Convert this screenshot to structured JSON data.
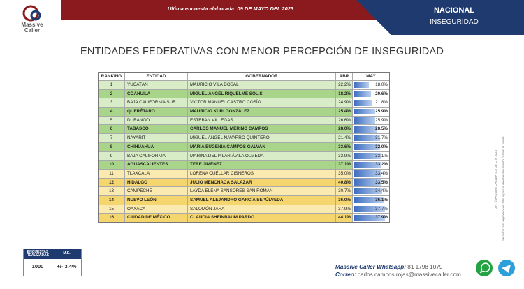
{
  "header": {
    "logo_text": "Massive Caller",
    "date_text": "Última encuesta elaborada: 09 DE MAYO DEL 2023",
    "scope": "NACIONAL",
    "topic": "INSEGURIDAD"
  },
  "title": "ENTIDADES FEDERATIVAS CON MENOR PERCEPCIÓN DE INSEGURIDAD",
  "table": {
    "columns": [
      "RANKING",
      "ENTIDAD",
      "GOBERNADOR",
      "ABR",
      "MAY"
    ],
    "bar_color": "#3f6fc0",
    "rows": [
      {
        "ranking": "1",
        "entidad": "YUCATÁN",
        "gobernador": "MAURICIO VILA DOSAL",
        "abr": "22.2%",
        "may": {
          "value": 18.0,
          "label": "18.0%"
        },
        "color": "#d8ecc8",
        "bold": false
      },
      {
        "ranking": "2",
        "entidad": "COAHUILA",
        "gobernador": "MIGUEL ÁNGEL RIQUELME SOLÍS",
        "abr": "18.2%",
        "may": {
          "value": 20.6,
          "label": "20.6%"
        },
        "color": "#a9d58a",
        "bold": true
      },
      {
        "ranking": "3",
        "entidad": "BAJA CALIFORNIA SUR",
        "gobernador": "VÍCTOR MANUEL CASTRO COSÍO",
        "abr": "24.9%",
        "may": {
          "value": 21.8,
          "label": "21.8%"
        },
        "color": "#d8ecc8",
        "bold": false
      },
      {
        "ranking": "4",
        "entidad": "QUERÉTARO",
        "gobernador": "MAURICIO KURI GONZÁLEZ",
        "abr": "25.4%",
        "may": {
          "value": 25.9,
          "label": "25.9%"
        },
        "color": "#a9d58a",
        "bold": true
      },
      {
        "ranking": "5",
        "entidad": "DURANGO",
        "gobernador": "ESTEBAN VILLEGAS",
        "abr": "26.6%",
        "may": {
          "value": 25.9,
          "label": "25.9%"
        },
        "color": "#d8ecc8",
        "bold": false
      },
      {
        "ranking": "6",
        "entidad": "TABASCO",
        "gobernador": "CARLOS MANUEL MERINO CAMPOS",
        "abr": "28.0%",
        "may": {
          "value": 28.5,
          "label": "28.5%"
        },
        "color": "#a9d58a",
        "bold": true
      },
      {
        "ranking": "7",
        "entidad": "NAYARIT",
        "gobernador": "MIGUEL ÁNGEL NAVARRO QUINTERO",
        "abr": "21.4%",
        "may": {
          "value": 31.7,
          "label": "31.7%"
        },
        "color": "#d8ecc8",
        "bold": false
      },
      {
        "ranking": "8",
        "entidad": "CHIHUAHUA",
        "gobernador": "MARÍA EUGENIA CAMPOS GALVÁN",
        "abr": "33.6%",
        "may": {
          "value": 32.0,
          "label": "32.0%"
        },
        "color": "#a9d58a",
        "bold": true
      },
      {
        "ranking": "9",
        "entidad": "BAJA CALIFORNIA",
        "gobernador": "MARINA DEL PILAR ÁVILA OLMEDA",
        "abr": "33.9%",
        "may": {
          "value": 33.1,
          "label": "33.1%"
        },
        "color": "#d8ecc8",
        "bold": false
      },
      {
        "ranking": "10",
        "entidad": "AGUASCALIENTES",
        "gobernador": "TERE JIMÉNEZ",
        "abr": "37.1%",
        "may": {
          "value": 33.2,
          "label": "33.2%"
        },
        "color": "#a9d58a",
        "bold": true
      },
      {
        "ranking": "11",
        "entidad": "TLAXCALA",
        "gobernador": "LORENA CUÉLLAR CISNEROS",
        "abr": "35.0%",
        "may": {
          "value": 33.4,
          "label": "33.4%"
        },
        "color": "#fbeab0",
        "bold": false
      },
      {
        "ranking": "12",
        "entidad": "HIDALGO",
        "gobernador": "JULIO MENCHACA SALAZAR",
        "abr": "40.8%",
        "may": {
          "value": 33.5,
          "label": "33.5%"
        },
        "color": "#f5d66e",
        "bold": true
      },
      {
        "ranking": "13",
        "entidad": "CAMPECHE",
        "gobernador": "LAYDA ELENA SANSORES SAN ROMÁN",
        "abr": "30.7%",
        "may": {
          "value": 34.4,
          "label": "34.4%"
        },
        "color": "#fbeab0",
        "bold": false
      },
      {
        "ranking": "14",
        "entidad": "NUEVO LEÓN",
        "gobernador": "SAMUEL ALEJANDRO GARCÍA SEPÚLVEDA",
        "abr": "36.0%",
        "may": {
          "value": 36.1,
          "label": "36.1%"
        },
        "color": "#f5d66e",
        "bold": true
      },
      {
        "ranking": "15",
        "entidad": "OAXACA",
        "gobernador": "SALOMÓN JARA",
        "abr": "37.9%",
        "may": {
          "value": 37.7,
          "label": "37.7%"
        },
        "color": "#fbeab0",
        "bold": false
      },
      {
        "ranking": "16",
        "entidad": "CIUDAD DE MÉXICO",
        "gobernador": "CLAUDIA SHEINBAUM PARDO",
        "abr": "44.1%",
        "may": {
          "value": 37.9,
          "label": "37.9%"
        },
        "color": "#f5d66e",
        "bold": true
      }
    ]
  },
  "survey_box": {
    "headers": [
      "ENCUESTAS REALIZADAS",
      "M.E."
    ],
    "values": [
      "1000",
      "+/- 3.4%"
    ]
  },
  "contact": {
    "whatsapp_label": "Massive Caller Whatsapp:",
    "whatsapp": "81 1798 1079",
    "email_label": "Correo:",
    "email": "carlos.campos.rojas@massivecaller.com"
  },
  "side_notes": [
    "D.R. ©MASSIVE CALLER S.A DE C.V. 2023",
    "Se autoriza la reproducción total o parcial de este documento citando la fuente"
  ]
}
